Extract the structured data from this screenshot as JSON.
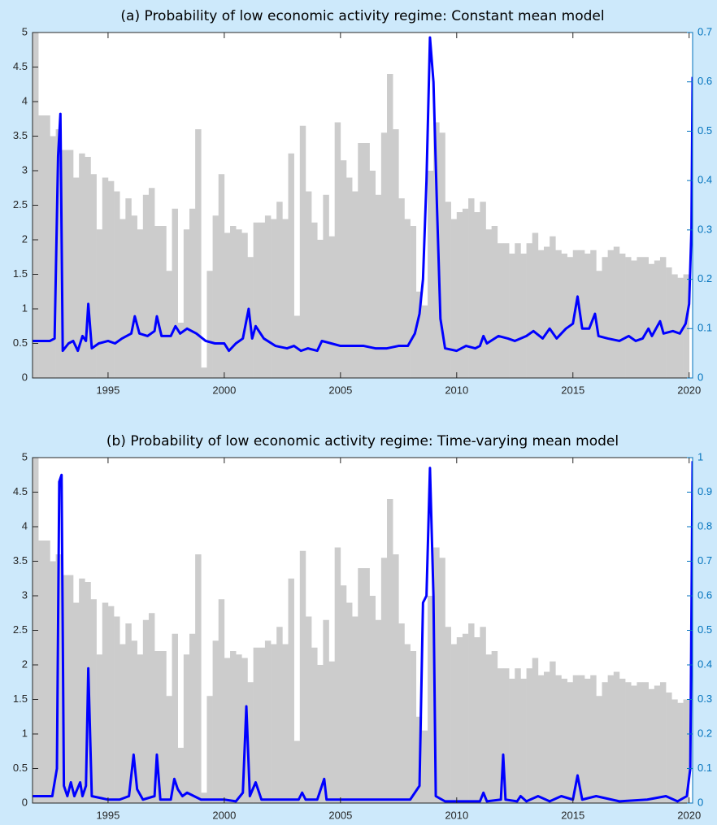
{
  "chart_data": [
    {
      "type": "bar",
      "title": "(a) Probability of low economic activity regime: Constant mean model",
      "xlim": [
        1991.75,
        2020.15
      ],
      "xticks": [
        1995,
        2000,
        2005,
        2010,
        2015,
        2020
      ],
      "ylim": [
        0,
        5
      ],
      "yticks": [
        0,
        0.5,
        1,
        1.5,
        2,
        2.5,
        3,
        3.5,
        4,
        4.5,
        5
      ],
      "y2lim": [
        0,
        0.7
      ],
      "y2ticks": [
        0,
        0.1,
        0.2,
        0.3,
        0.4,
        0.5,
        0.6,
        0.7
      ],
      "y2color": "#0072bd",
      "series": [
        {
          "type": "bar",
          "color": "#cccccc",
          "x": [
            1992,
            1992.25,
            1992.5,
            1992.75,
            1993,
            1993.25,
            1993.5,
            1993.75,
            1994,
            1994.25,
            1994.5,
            1994.75,
            1995,
            1995.25,
            1995.5,
            1995.75,
            1996,
            1996.25,
            1996.5,
            1996.75,
            1997,
            1997.25,
            1997.5,
            1997.75,
            1998,
            1998.25,
            1998.5,
            1998.75,
            1999,
            1999.25,
            1999.5,
            1999.75,
            2000,
            2000.25,
            2000.5,
            2000.75,
            2001,
            2001.25,
            2001.5,
            2001.75,
            2002,
            2002.25,
            2002.5,
            2002.75,
            2003,
            2003.25,
            2003.5,
            2003.75,
            2004,
            2004.25,
            2004.5,
            2004.75,
            2005,
            2005.25,
            2005.5,
            2005.75,
            2006,
            2006.25,
            2006.5,
            2006.75,
            2007,
            2007.25,
            2007.5,
            2007.75,
            2008,
            2008.25,
            2008.5,
            2008.75,
            2009,
            2009.25,
            2009.5,
            2009.75,
            2010,
            2010.25,
            2010.5,
            2010.75,
            2011,
            2011.25,
            2011.5,
            2011.75,
            2012,
            2012.25,
            2012.5,
            2012.75,
            2013,
            2013.25,
            2013.5,
            2013.75,
            2014,
            2014.25,
            2014.5,
            2014.75,
            2015,
            2015.25,
            2015.5,
            2015.75,
            2016,
            2016.25,
            2016.5,
            2016.75,
            2017,
            2017.25,
            2017.5,
            2017.75,
            2018,
            2018.25,
            2018.5,
            2018.75,
            2019,
            2019.25,
            2019.5,
            2019.75,
            2020
          ],
          "values": [
            5,
            3.8,
            3.8,
            3.5,
            3.6,
            3.3,
            3.3,
            2.9,
            3.25,
            3.2,
            2.95,
            2.15,
            2.9,
            2.85,
            2.7,
            2.3,
            2.6,
            2.35,
            2.15,
            2.65,
            2.75,
            2.2,
            2.2,
            1.55,
            2.45,
            0.8,
            2.15,
            2.45,
            3.6,
            0.15,
            1.55,
            2.35,
            2.95,
            2.1,
            2.2,
            2.15,
            2.1,
            1.75,
            2.25,
            2.25,
            2.35,
            2.3,
            2.55,
            2.3,
            3.25,
            0.9,
            3.65,
            2.7,
            2.25,
            2.0,
            2.65,
            2.05,
            3.7,
            3.15,
            2.9,
            2.7,
            3.4,
            3.4,
            3.0,
            2.65,
            3.55,
            4.4,
            3.6,
            2.6,
            2.3,
            2.2,
            1.25,
            1.05,
            3.0,
            3.7,
            3.55,
            2.55,
            2.3,
            2.4,
            2.45,
            2.6,
            2.4,
            2.55,
            2.15,
            2.2,
            1.95,
            1.95,
            1.8,
            1.95,
            1.8,
            1.95,
            2.1,
            1.85,
            1.9,
            2.05,
            1.85,
            1.8,
            1.75,
            1.85,
            1.85,
            1.8,
            1.85,
            1.55,
            1.75,
            1.85,
            1.9,
            1.8,
            1.75,
            1.7,
            1.75,
            1.75,
            1.65,
            1.7,
            1.75,
            1.6,
            1.5,
            1.45,
            1.5
          ]
        },
        {
          "type": "line",
          "axis": "y2",
          "color": "#0000ff",
          "x": [
            1991.75,
            1992.5,
            1992.7,
            1992.85,
            1992.95,
            1993.05,
            1993.3,
            1993.5,
            1993.7,
            1993.9,
            1994.05,
            1994.15,
            1994.3,
            1994.6,
            1995.0,
            1995.3,
            1995.6,
            1996.0,
            1996.15,
            1996.35,
            1996.7,
            1997.0,
            1997.1,
            1997.3,
            1997.7,
            1997.9,
            1998.1,
            1998.4,
            1998.8,
            1999.2,
            1999.6,
            2000.0,
            2000.2,
            2000.5,
            2000.8,
            2001.05,
            2001.2,
            2001.35,
            2001.7,
            2002.2,
            2002.7,
            2003.0,
            2003.3,
            2003.6,
            2004.0,
            2004.2,
            2004.6,
            2005.0,
            2005.5,
            2006.0,
            2006.5,
            2007.0,
            2007.5,
            2007.9,
            2008.2,
            2008.4,
            2008.55,
            2008.7,
            2008.85,
            2009.0,
            2009.15,
            2009.3,
            2009.5,
            2010.0,
            2010.4,
            2010.8,
            2011.0,
            2011.15,
            2011.3,
            2011.8,
            2012.2,
            2012.5,
            2013.0,
            2013.3,
            2013.7,
            2014.0,
            2014.3,
            2014.7,
            2015.0,
            2015.2,
            2015.4,
            2015.7,
            2015.95,
            2016.1,
            2016.5,
            2017.0,
            2017.4,
            2017.7,
            2018.0,
            2018.25,
            2018.4,
            2018.75,
            2018.9,
            2019.3,
            2019.6,
            2019.85,
            2020.0,
            2020.1,
            2020.15
          ],
          "values": [
            0.075,
            0.075,
            0.08,
            0.45,
            0.535,
            0.055,
            0.07,
            0.075,
            0.055,
            0.085,
            0.075,
            0.15,
            0.06,
            0.07,
            0.075,
            0.07,
            0.08,
            0.09,
            0.125,
            0.09,
            0.085,
            0.095,
            0.125,
            0.085,
            0.085,
            0.105,
            0.09,
            0.1,
            0.09,
            0.075,
            0.07,
            0.07,
            0.055,
            0.07,
            0.08,
            0.14,
            0.08,
            0.105,
            0.08,
            0.065,
            0.06,
            0.065,
            0.055,
            0.06,
            0.055,
            0.075,
            0.07,
            0.065,
            0.065,
            0.065,
            0.06,
            0.06,
            0.065,
            0.065,
            0.09,
            0.13,
            0.2,
            0.4,
            0.69,
            0.6,
            0.35,
            0.12,
            0.06,
            0.055,
            0.065,
            0.06,
            0.065,
            0.085,
            0.07,
            0.085,
            0.08,
            0.075,
            0.085,
            0.095,
            0.08,
            0.1,
            0.08,
            0.1,
            0.11,
            0.165,
            0.1,
            0.1,
            0.13,
            0.085,
            0.08,
            0.075,
            0.085,
            0.075,
            0.08,
            0.1,
            0.085,
            0.115,
            0.09,
            0.095,
            0.09,
            0.11,
            0.15,
            0.3,
            0.61
          ]
        }
      ]
    },
    {
      "type": "bar",
      "title": "(b) Probability of low economic activity regime: Time-varying mean model",
      "xlim": [
        1991.75,
        2020.15
      ],
      "xticks": [
        1995,
        2000,
        2005,
        2010,
        2015,
        2020
      ],
      "ylim": [
        0,
        5
      ],
      "yticks": [
        0,
        0.5,
        1,
        1.5,
        2,
        2.5,
        3,
        3.5,
        4,
        4.5,
        5
      ],
      "y2lim": [
        0,
        1
      ],
      "y2ticks": [
        0,
        0.1,
        0.2,
        0.3,
        0.4,
        0.5,
        0.6,
        0.7,
        0.8,
        0.9,
        1
      ],
      "y2color": "#0072bd",
      "series": [
        {
          "type": "bar",
          "color": "#cccccc",
          "x": [
            1992,
            1992.25,
            1992.5,
            1992.75,
            1993,
            1993.25,
            1993.5,
            1993.75,
            1994,
            1994.25,
            1994.5,
            1994.75,
            1995,
            1995.25,
            1995.5,
            1995.75,
            1996,
            1996.25,
            1996.5,
            1996.75,
            1997,
            1997.25,
            1997.5,
            1997.75,
            1998,
            1998.25,
            1998.5,
            1998.75,
            1999,
            1999.25,
            1999.5,
            1999.75,
            2000,
            2000.25,
            2000.5,
            2000.75,
            2001,
            2001.25,
            2001.5,
            2001.75,
            2002,
            2002.25,
            2002.5,
            2002.75,
            2003,
            2003.25,
            2003.5,
            2003.75,
            2004,
            2004.25,
            2004.5,
            2004.75,
            2005,
            2005.25,
            2005.5,
            2005.75,
            2006,
            2006.25,
            2006.5,
            2006.75,
            2007,
            2007.25,
            2007.5,
            2007.75,
            2008,
            2008.25,
            2008.5,
            2008.75,
            2009,
            2009.25,
            2009.5,
            2009.75,
            2010,
            2010.25,
            2010.5,
            2010.75,
            2011,
            2011.25,
            2011.5,
            2011.75,
            2012,
            2012.25,
            2012.5,
            2012.75,
            2013,
            2013.25,
            2013.5,
            2013.75,
            2014,
            2014.25,
            2014.5,
            2014.75,
            2015,
            2015.25,
            2015.5,
            2015.75,
            2016,
            2016.25,
            2016.5,
            2016.75,
            2017,
            2017.25,
            2017.5,
            2017.75,
            2018,
            2018.25,
            2018.5,
            2018.75,
            2019,
            2019.25,
            2019.5,
            2019.75,
            2020
          ],
          "values": [
            5,
            3.8,
            3.8,
            3.5,
            3.6,
            3.3,
            3.3,
            2.9,
            3.25,
            3.2,
            2.95,
            2.15,
            2.9,
            2.85,
            2.7,
            2.3,
            2.6,
            2.35,
            2.15,
            2.65,
            2.75,
            2.2,
            2.2,
            1.55,
            2.45,
            0.8,
            2.15,
            2.45,
            3.6,
            0.15,
            1.55,
            2.35,
            2.95,
            2.1,
            2.2,
            2.15,
            2.1,
            1.75,
            2.25,
            2.25,
            2.35,
            2.3,
            2.55,
            2.3,
            3.25,
            0.9,
            3.65,
            2.7,
            2.25,
            2.0,
            2.65,
            2.05,
            3.7,
            3.15,
            2.9,
            2.7,
            3.4,
            3.4,
            3.0,
            2.65,
            3.55,
            4.4,
            3.6,
            2.6,
            2.3,
            2.2,
            1.25,
            1.05,
            3.0,
            3.7,
            3.55,
            2.55,
            2.3,
            2.4,
            2.45,
            2.6,
            2.4,
            2.55,
            2.15,
            2.2,
            1.95,
            1.95,
            1.8,
            1.95,
            1.8,
            1.95,
            2.1,
            1.85,
            1.9,
            2.05,
            1.85,
            1.8,
            1.75,
            1.85,
            1.85,
            1.8,
            1.85,
            1.55,
            1.75,
            1.85,
            1.9,
            1.8,
            1.75,
            1.7,
            1.75,
            1.75,
            1.65,
            1.7,
            1.75,
            1.6,
            1.5,
            1.45,
            1.5
          ]
        },
        {
          "type": "line",
          "axis": "y2",
          "color": "#0000ff",
          "x": [
            1991.75,
            1992.6,
            1992.8,
            1992.9,
            1993.0,
            1993.1,
            1993.25,
            1993.4,
            1993.55,
            1993.8,
            1993.9,
            1994.05,
            1994.15,
            1994.3,
            1995.0,
            1995.5,
            1995.9,
            1996.1,
            1996.25,
            1996.5,
            1997.0,
            1997.1,
            1997.25,
            1997.7,
            1997.85,
            1998.0,
            1998.2,
            1998.4,
            1998.7,
            1999.0,
            2000.0,
            2000.5,
            2000.8,
            2000.95,
            2001.1,
            2001.35,
            2001.6,
            2003.2,
            2003.35,
            2003.5,
            2004.0,
            2004.15,
            2004.3,
            2004.4,
            2008.0,
            2008.4,
            2008.55,
            2008.7,
            2008.85,
            2009.0,
            2009.1,
            2009.5,
            2011.0,
            2011.15,
            2011.3,
            2011.9,
            2012.0,
            2012.1,
            2012.6,
            2012.75,
            2013.0,
            2013.5,
            2014.0,
            2014.5,
            2015.0,
            2015.2,
            2015.4,
            2016.0,
            2017.0,
            2018.2,
            2019.0,
            2019.5,
            2019.9,
            2020.05,
            2020.15
          ],
          "values": [
            0.02,
            0.02,
            0.1,
            0.93,
            0.95,
            0.05,
            0.02,
            0.06,
            0.02,
            0.06,
            0.02,
            0.05,
            0.39,
            0.02,
            0.01,
            0.01,
            0.02,
            0.14,
            0.04,
            0.01,
            0.02,
            0.14,
            0.01,
            0.01,
            0.07,
            0.04,
            0.02,
            0.03,
            0.02,
            0.01,
            0.01,
            0.005,
            0.03,
            0.28,
            0.02,
            0.06,
            0.01,
            0.01,
            0.03,
            0.01,
            0.01,
            0.04,
            0.07,
            0.01,
            0.01,
            0.05,
            0.58,
            0.6,
            0.97,
            0.6,
            0.02,
            0.005,
            0.005,
            0.03,
            0.005,
            0.01,
            0.14,
            0.01,
            0.005,
            0.02,
            0.005,
            0.02,
            0.005,
            0.02,
            0.01,
            0.08,
            0.01,
            0.02,
            0.005,
            0.01,
            0.02,
            0.005,
            0.02,
            0.1,
            0.99
          ]
        }
      ]
    }
  ]
}
